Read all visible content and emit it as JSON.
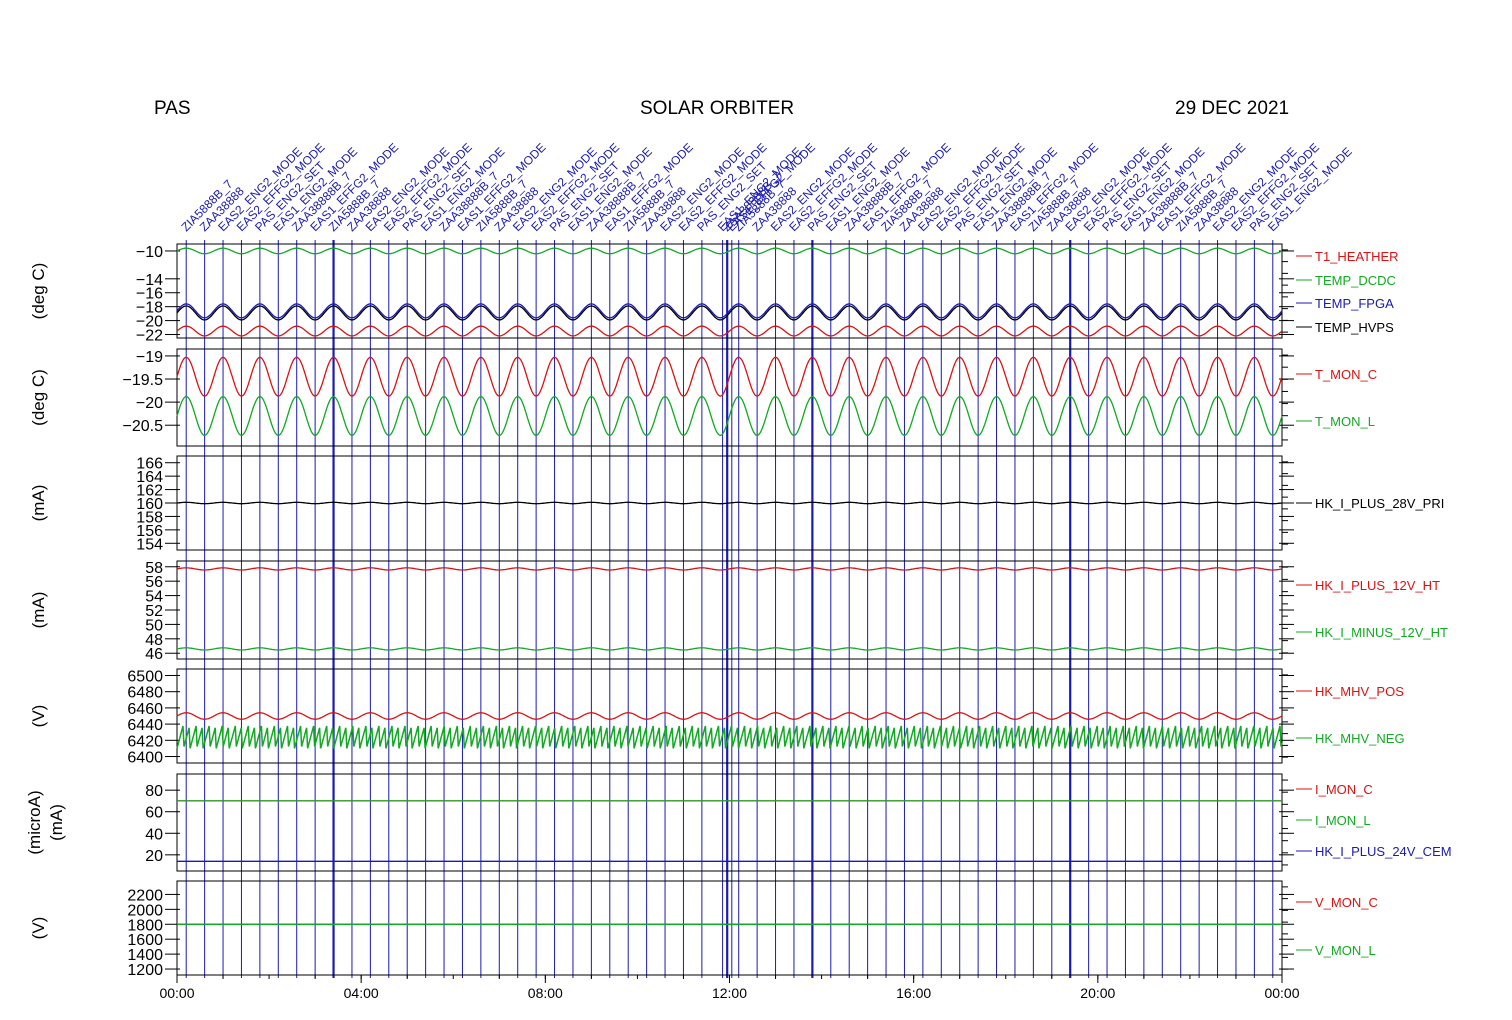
{
  "header": {
    "instrument": "PAS",
    "spacecraft": "SOLAR ORBITER",
    "date": "29 DEC 2021"
  },
  "colors": {
    "red": "#dd1111",
    "green": "#11aa22",
    "blue": "#1a1ab4",
    "black": "#000000",
    "event_line": "#1a1ab4"
  },
  "events": {
    "labels": [
      "ZIA5888B_7",
      "ZAA38888",
      "EAS2_ENG2_MODE",
      "EAS2_EFFG2_MODE",
      "PAS_ENG2_SET",
      "EAS1_ENG2_MODE",
      "ZAA38888B_7",
      "EAS1_EFFG2_MODE"
    ],
    "times_hours": [
      0.2,
      0.6,
      1.0,
      1.4,
      1.8,
      2.2,
      2.6,
      3.0,
      3.4,
      3.8,
      4.2,
      4.6,
      5.0,
      5.4,
      5.8,
      6.2,
      6.6,
      7.0,
      7.4,
      7.8,
      8.2,
      8.6,
      9.0,
      9.4,
      9.8,
      10.2,
      10.6,
      11.0,
      11.4,
      11.85,
      11.95,
      12.05,
      12.2,
      12.6,
      13.0,
      13.4,
      13.8,
      14.2,
      14.6,
      15.0,
      15.4,
      15.8,
      16.2,
      16.6,
      17.0,
      17.4,
      17.8,
      18.2,
      18.6,
      19.0,
      19.4,
      19.8,
      20.2,
      20.6,
      21.0,
      21.4,
      21.8,
      22.2,
      22.6,
      23.0,
      23.4,
      23.8
    ],
    "bold_hours": [
      3.4,
      11.95,
      13.8,
      19.4
    ]
  },
  "chart_data": [
    {
      "type": "line",
      "ylabel": "(deg C)",
      "ylim": [
        -22.5,
        -9.0
      ],
      "yticks": [
        -10,
        -14,
        -16,
        -18,
        -20,
        -22
      ],
      "xlim": [
        0,
        24
      ],
      "series": [
        {
          "name": "T1_HEATHER",
          "color": "#dd1111",
          "base": -21.5,
          "amp": 0.7,
          "period_h": 0.8
        },
        {
          "name": "TEMP_DCDC",
          "color": "#11aa22",
          "base": -10.0,
          "amp": 0.4,
          "period_h": 0.8
        },
        {
          "name": "TEMP_FPGA",
          "color": "#1a1ab4",
          "base": -18.6,
          "amp": 1.0,
          "period_h": 0.8
        },
        {
          "name": "TEMP_HVPS",
          "color": "#000000",
          "base": -18.9,
          "amp": 1.0,
          "period_h": 0.8
        }
      ]
    },
    {
      "type": "line",
      "ylabel": "(deg C)",
      "ylim": [
        -20.95,
        -18.85
      ],
      "yticks": [
        -19.0,
        -19.5,
        -20.0,
        -20.5
      ],
      "xlim": [
        0,
        24
      ],
      "series": [
        {
          "name": "T_MON_C",
          "color": "#dd1111",
          "base": -19.45,
          "amp": 0.42,
          "period_h": 0.8
        },
        {
          "name": "T_MON_L",
          "color": "#11aa22",
          "base": -20.3,
          "amp": 0.42,
          "period_h": 0.8
        }
      ]
    },
    {
      "type": "line",
      "ylabel": "(mA)",
      "ylim": [
        153.0,
        167.0
      ],
      "yticks": [
        166,
        164,
        162,
        160,
        158,
        156,
        154
      ],
      "xlim": [
        0,
        24
      ],
      "series": [
        {
          "name": "HK_I_PLUS_28V_PRI",
          "color": "#000000",
          "base": 160.0,
          "amp": 0.1,
          "period_h": 0.8
        }
      ]
    },
    {
      "type": "line",
      "ylabel": "(mA)",
      "ylim": [
        45.2,
        58.8
      ],
      "yticks": [
        58,
        56,
        54,
        52,
        50,
        48,
        46
      ],
      "xlim": [
        0,
        24
      ],
      "series": [
        {
          "name": "HK_I_PLUS_12V_HT",
          "color": "#dd1111",
          "base": 57.7,
          "amp": 0.15,
          "period_h": 0.8
        },
        {
          "name": "HK_I_MINUS_12V_HT",
          "color": "#11aa22",
          "base": 46.6,
          "amp": 0.15,
          "period_h": 0.8
        }
      ]
    },
    {
      "type": "line",
      "ylabel": "(V)",
      "ylim": [
        6392,
        6508
      ],
      "yticks": [
        6500,
        6480,
        6460,
        6440,
        6420,
        6400
      ],
      "xlim": [
        0,
        24
      ],
      "series": [
        {
          "name": "HK_MHV_POS",
          "color": "#dd1111",
          "base": 6450,
          "amp": 4,
          "period_h": 0.8
        },
        {
          "name": "HK_MHV_NEG",
          "color": "#11aa22",
          "base": 6425,
          "amp": 15,
          "period_h": 0.05
        }
      ]
    },
    {
      "type": "line",
      "ylabel": "(microA)",
      "ylabel2": "(mA)",
      "ylim": [
        5,
        95
      ],
      "yticks": [
        80,
        60,
        40,
        20
      ],
      "xlim": [
        0,
        24
      ],
      "series": [
        {
          "name": "I_MON_C",
          "color": "#dd1111",
          "base": 70,
          "amp": 0,
          "period_h": 1
        },
        {
          "name": "I_MON_L",
          "color": "#11aa22",
          "base": 70,
          "amp": 0,
          "period_h": 1
        },
        {
          "name": "HK_I_PLUS_24V_CEM",
          "color": "#1a1ab4",
          "base": 14,
          "amp": 0,
          "period_h": 1
        }
      ]
    },
    {
      "type": "line",
      "ylabel": "(V)",
      "ylim": [
        1120,
        2380
      ],
      "yticks": [
        2200,
        2000,
        1800,
        1600,
        1400,
        1200
      ],
      "xlim": [
        0,
        24
      ],
      "series": [
        {
          "name": "V_MON_C",
          "color": "#dd1111",
          "base": 1800,
          "amp": 0,
          "period_h": 1
        },
        {
          "name": "V_MON_L",
          "color": "#11aa22",
          "base": 1800,
          "amp": 0,
          "period_h": 1
        }
      ]
    }
  ],
  "xaxis": {
    "tick_labels": [
      "00:00",
      "04:00",
      "08:00",
      "12:00",
      "16:00",
      "20:00",
      "00:00"
    ],
    "tick_hours": [
      0,
      4,
      8,
      12,
      16,
      20,
      24
    ]
  }
}
